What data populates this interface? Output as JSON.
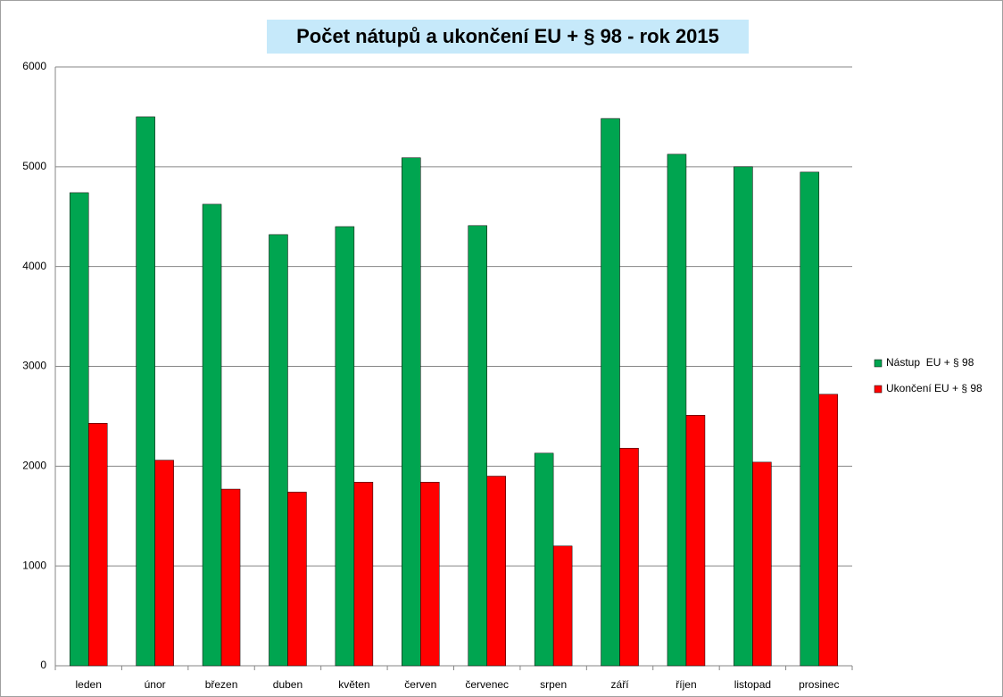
{
  "chart_data": {
    "type": "bar",
    "title": "Počet nátupů a ukončení EU + § 98 - rok 2015",
    "categories": [
      "leden",
      "únor",
      "březen",
      "duben",
      "květen",
      "červen",
      "červenec",
      "srpen",
      "září",
      "říjen",
      "listopad",
      "prosinec"
    ],
    "series": [
      {
        "name": "Nástup  EU + § 98",
        "color": "#00a550",
        "values": [
          4740,
          5500,
          4624,
          4320,
          4400,
          5090,
          4410,
          2130,
          5483,
          5125,
          5000,
          4946
        ]
      },
      {
        "name": "Ukončení EU + § 98",
        "color": "#ff0000",
        "values": [
          2430,
          2060,
          1770,
          1740,
          1840,
          1840,
          1900,
          1200,
          2180,
          2510,
          2040,
          2720
        ]
      }
    ],
    "ylim": [
      0,
      6000
    ],
    "yticks": [
      0,
      1000,
      2000,
      3000,
      4000,
      5000,
      6000
    ],
    "grid": true,
    "legend": "right"
  }
}
